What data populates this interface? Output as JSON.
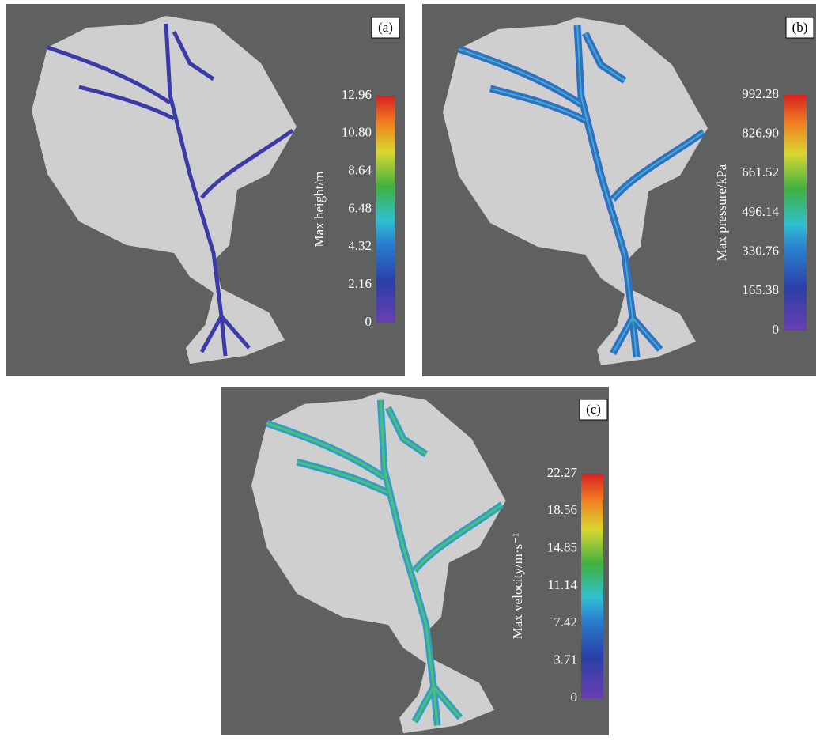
{
  "panels": [
    {
      "label": "(a)",
      "colorbar": {
        "title": "Max height/m",
        "ticks": [
          "12.96",
          "10.80",
          "8.64",
          "6.48",
          "4.32",
          "2.16",
          "0"
        ]
      }
    },
    {
      "label": "(b)",
      "colorbar": {
        "title": "Max pressure/kPa",
        "ticks": [
          "992.28",
          "826.90",
          "661.52",
          "496.14",
          "330.76",
          "165.38",
          "0"
        ]
      }
    },
    {
      "label": "(c)",
      "colorbar": {
        "title": "Max velocity/m·s⁻¹",
        "ticks": [
          "22.27",
          "18.56",
          "14.85",
          "11.14",
          "7.42",
          "3.71",
          "0"
        ]
      }
    }
  ]
}
